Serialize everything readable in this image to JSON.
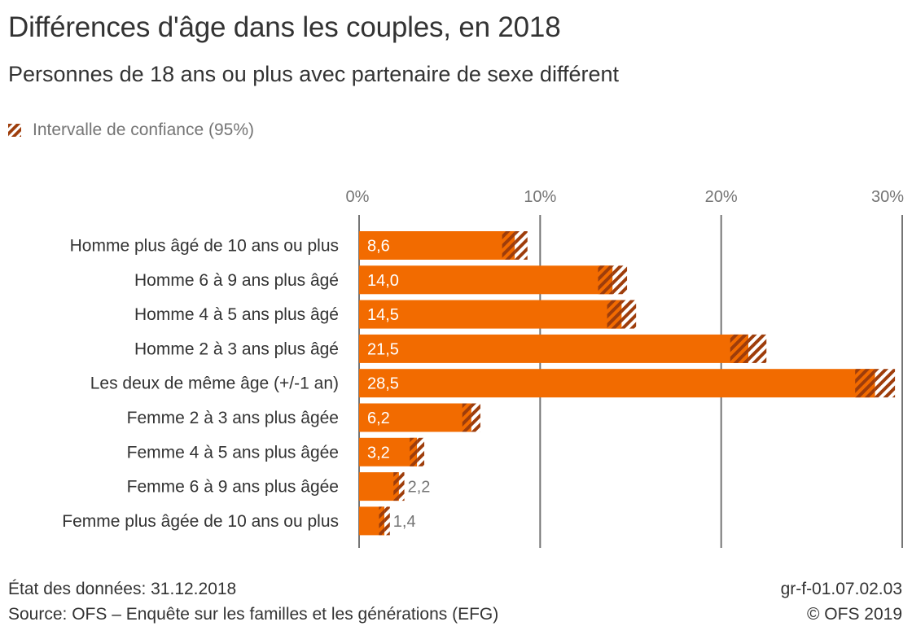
{
  "header": {
    "title": "Différences d'âge dans les couples, en 2018",
    "subtitle": "Personnes de 18 ans ou plus avec partenaire de sexe différent"
  },
  "legend": {
    "items": [
      {
        "label": "Intervalle de confiance (95%)",
        "icon": "hatched-swatch-icon"
      }
    ]
  },
  "colors": {
    "bar": "#f26b00",
    "ci_stripe": "#9e3d0b",
    "grid": "#757575",
    "label_inside": "#ffffff",
    "label_outside": "#757575"
  },
  "chart_data": {
    "type": "bar",
    "orientation": "horizontal",
    "title": "Différences d'âge dans les couples, en 2018",
    "subtitle": "Personnes de 18 ans ou plus avec partenaire de sexe différent",
    "xlabel": "",
    "ylabel": "",
    "xlim": [
      0,
      30
    ],
    "xticks": [
      0,
      10,
      20,
      30
    ],
    "xtick_labels": [
      "0%",
      "10%",
      "20%",
      "30%"
    ],
    "grid": true,
    "legend_position": "top-left",
    "categories": [
      "Homme plus âgé de 10 ans ou plus",
      "Homme 6 à 9 ans plus âgé",
      "Homme 4 à 5 ans plus âgé",
      "Homme 2 à 3 ans plus âgé",
      "Les deux de même âge (+/-1 an)",
      "Femme 2 à 3 ans plus âgée",
      "Femme 4 à 5 ans plus âgée",
      "Femme 6 à 9 ans plus âgée",
      "Femme plus âgée de 10 ans ou plus"
    ],
    "values": [
      8.6,
      14.0,
      14.5,
      21.5,
      28.5,
      6.2,
      3.2,
      2.2,
      1.4
    ],
    "value_labels": [
      "8,6",
      "14,0",
      "14,5",
      "21,5",
      "28,5",
      "6,2",
      "3,2",
      "2,2",
      "1,4"
    ],
    "confidence_interval": [
      0.7,
      0.8,
      0.8,
      1.0,
      1.1,
      0.5,
      0.4,
      0.3,
      0.3
    ],
    "unit": "%"
  },
  "footer": {
    "data_state": "État des données: 31.12.2018",
    "source": "Source: OFS – Enquête sur les familles et les générations (EFG)",
    "graphic_id": "gr-f-01.07.02.03",
    "copyright": "© OFS 2019"
  }
}
